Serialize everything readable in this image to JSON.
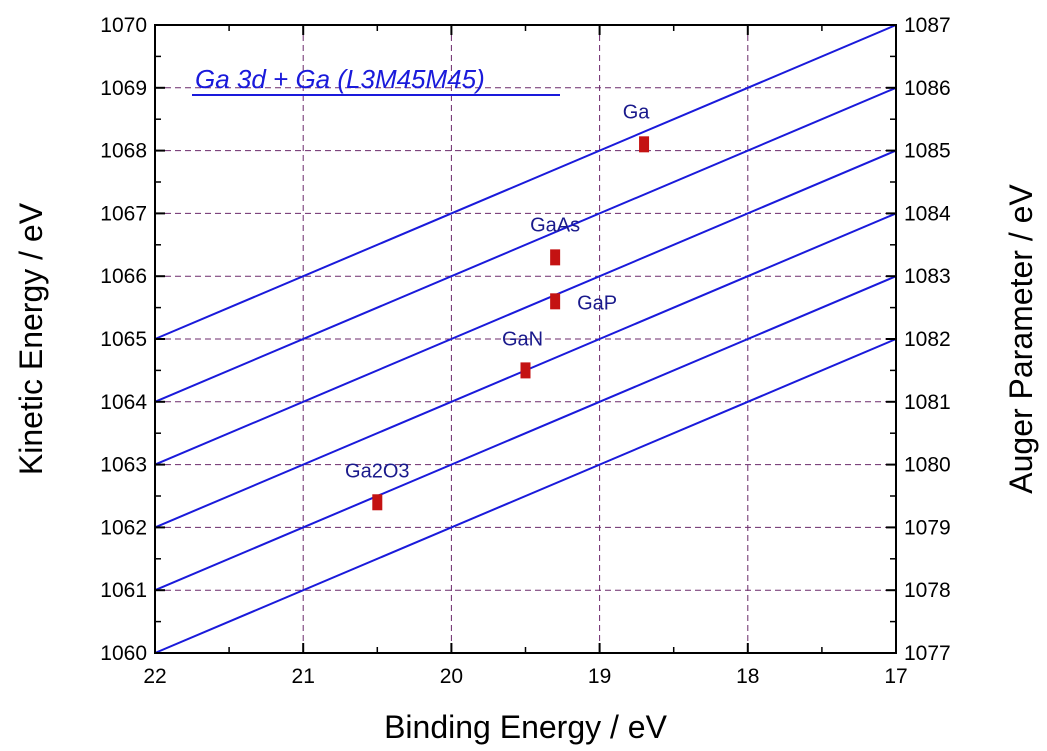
{
  "chart_data": {
    "type": "scatter",
    "title": "Ga 3d + Ga (L3M45M45)",
    "xlabel": "Binding Energy / eV",
    "ylabel": "Kinetic Energy / eV",
    "y2label": "Auger Parameter / eV",
    "xlim": [
      22,
      17
    ],
    "x_reversed": true,
    "ylim": [
      1060,
      1070
    ],
    "y2lim": [
      1077,
      1087
    ],
    "xticks": [
      "22",
      "21",
      "20",
      "19",
      "18",
      "17"
    ],
    "yticks": [
      "1060",
      "1061",
      "1062",
      "1063",
      "1064",
      "1065",
      "1066",
      "1067",
      "1068",
      "1069",
      "1070"
    ],
    "y2ticks": [
      "1077",
      "1078",
      "1079",
      "1080",
      "1081",
      "1082",
      "1083",
      "1084",
      "1085",
      "1086",
      "1087"
    ],
    "grid": true,
    "reference_lines": {
      "description": "Lines of constant Auger parameter (binding energy + kinetic energy)",
      "auger_parameter_values": [
        1082,
        1083,
        1084,
        1085,
        1086,
        1087
      ]
    },
    "points": [
      {
        "label": "Ga",
        "x": 18.7,
        "y": 1068.1
      },
      {
        "label": "GaAs",
        "x": 19.3,
        "y": 1066.3
      },
      {
        "label": "GaP",
        "x": 19.3,
        "y": 1065.6
      },
      {
        "label": "GaN",
        "x": 19.5,
        "y": 1064.5
      },
      {
        "label": "Ga2O3",
        "x": 20.5,
        "y": 1062.4
      }
    ],
    "colors": {
      "lines": "#1a1adb",
      "points": "#c41212",
      "labels": "#1a1a8c",
      "grid": "#6b2a6b",
      "title": "#1a1adb"
    }
  }
}
